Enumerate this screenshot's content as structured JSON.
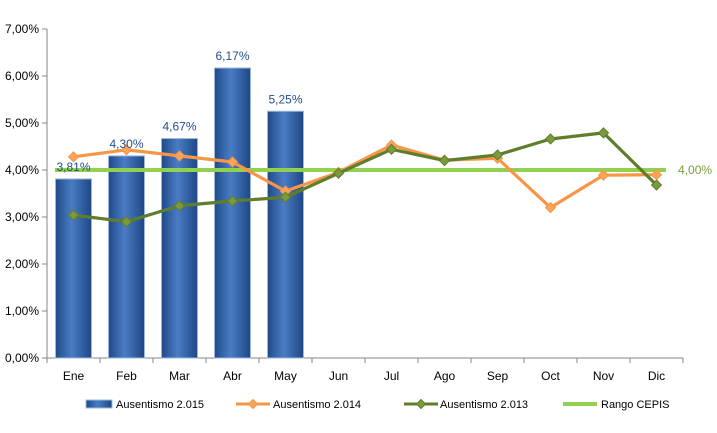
{
  "chart_data": {
    "type": "bar",
    "categories": [
      "Ene",
      "Feb",
      "Mar",
      "Abr",
      "May",
      "Jun",
      "Jul",
      "Ago",
      "Sep",
      "Oct",
      "Nov",
      "Dic"
    ],
    "ylim": [
      0,
      7
    ],
    "y_ticks": [
      0,
      1,
      2,
      3,
      4,
      5,
      6,
      7
    ],
    "y_tick_labels": [
      "0,00%",
      "1,00%",
      "2,00%",
      "3,00%",
      "4,00%",
      "5,00%",
      "6,00%",
      "7,00%"
    ],
    "grid": false,
    "legend_position": "bottom",
    "series": [
      {
        "name": "Ausentismo 2.015",
        "kind": "bar",
        "color": "#2E5FA8",
        "values": [
          3.81,
          4.3,
          4.67,
          6.17,
          5.25,
          null,
          null,
          null,
          null,
          null,
          null,
          null
        ],
        "data_labels": [
          "3,81%",
          "4,30%",
          "4,67%",
          "6,17%",
          "5,25%",
          null,
          null,
          null,
          null,
          null,
          null,
          null
        ],
        "label_color": "#1F4E8C"
      },
      {
        "name": "Ausentismo 2.014",
        "kind": "line",
        "color": "#F79646",
        "marker_fill": "#F8A45C",
        "values": [
          4.28,
          4.43,
          4.3,
          4.17,
          3.55,
          3.95,
          4.53,
          4.21,
          4.25,
          3.2,
          3.89,
          3.9
        ]
      },
      {
        "name": "Ausentismo 2.013",
        "kind": "line",
        "color": "#5E7E2C",
        "marker_fill": "#7A9A3C",
        "values": [
          3.04,
          2.9,
          3.24,
          3.34,
          3.42,
          3.93,
          4.44,
          4.2,
          4.32,
          4.66,
          4.79,
          3.68
        ]
      },
      {
        "name": "Rango CEPIS",
        "kind": "line",
        "color": "#92D050",
        "values": [
          4.0,
          4.0,
          4.0,
          4.0,
          4.0,
          4.0,
          4.0,
          4.0,
          4.0,
          4.0,
          4.0,
          4.0
        ],
        "end_label": "4,00%",
        "end_label_color": "#76A03A"
      }
    ]
  }
}
